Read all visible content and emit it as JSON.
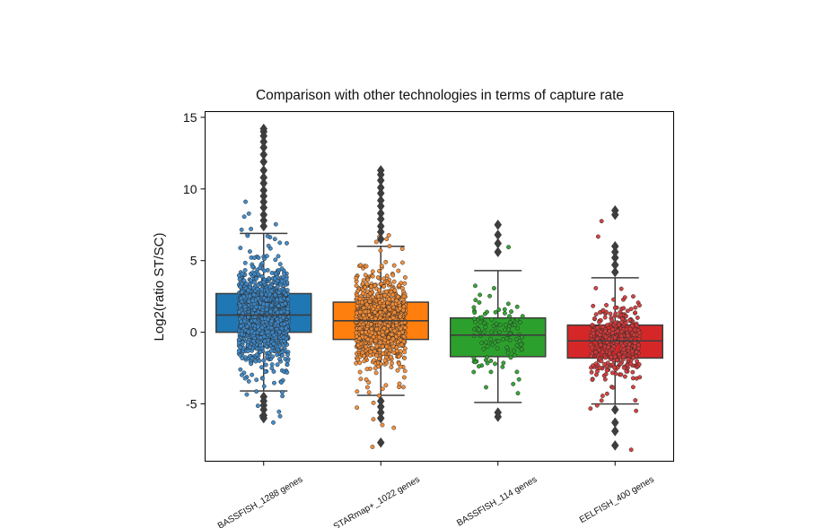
{
  "chart_data": {
    "type": "box",
    "title": "Comparison with other technologies in terms of capture rate",
    "xlabel": "",
    "ylabel": "Log2(ratio ST/SC)",
    "ylim": [
      -9,
      15.4
    ],
    "yticks": [
      -5,
      0,
      5,
      10,
      15
    ],
    "ytick_labels": [
      "-5",
      "0",
      "5",
      "10",
      "15"
    ],
    "grid": false,
    "legend": "none",
    "overlay": "jittered strip points per gene",
    "categories": [
      "BASSFISH_1288 genes",
      "STARmap+_1022 genes",
      "BASSFISH_114 genes",
      "EELFISH_400 genes"
    ],
    "series": [
      {
        "name": "BASSFISH_1288 genes",
        "n_points": 1288,
        "color": "#1f77b4",
        "point_color": "#3b87c7",
        "q1": 0.0,
        "median": 1.2,
        "q3": 2.7,
        "whisker_low": -4.1,
        "whisker_high": 6.9,
        "outliers": [
          7.4,
          7.8,
          8.2,
          8.7,
          9.1,
          9.5,
          9.9,
          10.4,
          10.8,
          11.3,
          11.9,
          12.4,
          12.9,
          13.3,
          13.7,
          14.0,
          14.2,
          -4.5,
          -4.8,
          -5.1,
          -5.4,
          -5.8,
          -6.0
        ]
      },
      {
        "name": "STARmap+_1022 genes",
        "n_points": 1022,
        "color": "#ff7f0e",
        "point_color": "#f28b35",
        "q1": -0.5,
        "median": 0.8,
        "q3": 2.1,
        "whisker_low": -4.4,
        "whisker_high": 6.0,
        "outliers": [
          6.5,
          7.0,
          7.4,
          7.9,
          8.3,
          8.8,
          9.2,
          9.7,
          10.1,
          10.6,
          11.0,
          11.3,
          -4.8,
          -5.2,
          -5.6,
          -6.0,
          -7.7
        ]
      },
      {
        "name": "BASSFISH_114 genes",
        "n_points": 114,
        "color": "#2ca02c",
        "point_color": "#2ca02c",
        "q1": -1.7,
        "median": -0.2,
        "q3": 1.0,
        "whisker_low": -4.9,
        "whisker_high": 4.3,
        "outliers": [
          5.6,
          6.2,
          6.8,
          7.5,
          -5.6,
          -5.9
        ]
      },
      {
        "name": "EELFISH_400 genes",
        "n_points": 400,
        "color": "#d62728",
        "point_color": "#d23a3a",
        "q1": -1.8,
        "median": -0.6,
        "q3": 0.5,
        "whisker_low": -5.0,
        "whisker_high": 3.8,
        "outliers": [
          4.2,
          4.7,
          5.2,
          5.6,
          6.0,
          8.2,
          8.5,
          -5.4,
          -6.3,
          -6.9,
          -7.9
        ]
      }
    ]
  }
}
